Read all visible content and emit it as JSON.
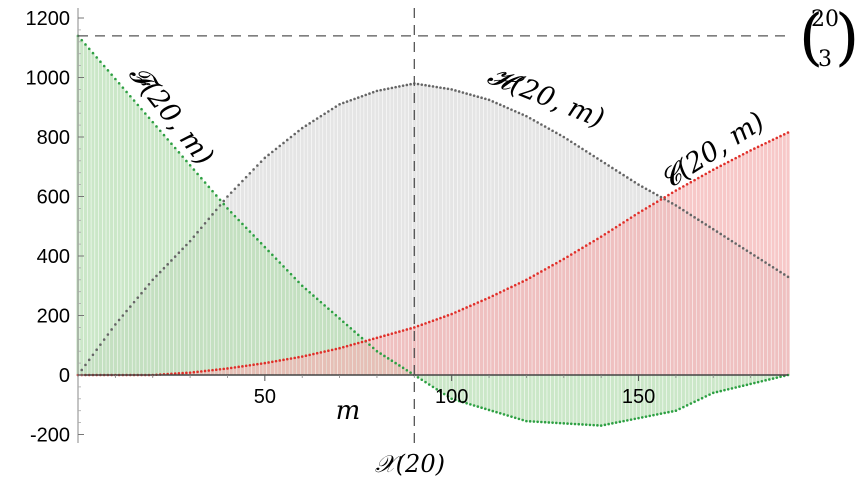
{
  "chart_data": {
    "type": "bar",
    "title": "",
    "xlabel": "m",
    "ylabel": "",
    "xlim": [
      0,
      190
    ],
    "ylim": [
      -220,
      1260
    ],
    "x_ticks": [
      50,
      100,
      150
    ],
    "x_tick_labels": [
      "50",
      "100",
      "150"
    ],
    "y_ticks": [
      -200,
      0,
      200,
      400,
      600,
      800,
      1000,
      1200
    ],
    "y_tick_labels": [
      "-200",
      "0",
      "200",
      "400",
      "600",
      "800",
      "1000",
      "1200"
    ],
    "grid": false,
    "legend": "none",
    "series": [
      {
        "name": "𝓕(20, m)",
        "color": "#2ea043",
        "fill": "#b8dfb4",
        "points": [
          [
            0,
            1140
          ],
          [
            20,
            850
          ],
          [
            40,
            560
          ],
          [
            60,
            300
          ],
          [
            80,
            80
          ],
          [
            90,
            0
          ],
          [
            100,
            -80
          ],
          [
            120,
            -155
          ],
          [
            140,
            -170
          ],
          [
            160,
            -120
          ],
          [
            170,
            -60
          ],
          [
            190,
            0
          ]
        ]
      },
      {
        "name": "𝓗(20, m)",
        "color": "#666666",
        "fill": "#dcdcdc",
        "points": [
          [
            0,
            0
          ],
          [
            10,
            170
          ],
          [
            20,
            320
          ],
          [
            30,
            450
          ],
          [
            40,
            600
          ],
          [
            50,
            730
          ],
          [
            60,
            830
          ],
          [
            70,
            910
          ],
          [
            80,
            955
          ],
          [
            90,
            980
          ],
          [
            100,
            960
          ],
          [
            110,
            925
          ],
          [
            120,
            870
          ],
          [
            130,
            800
          ],
          [
            140,
            720
          ],
          [
            150,
            640
          ],
          [
            160,
            570
          ],
          [
            170,
            490
          ],
          [
            180,
            410
          ],
          [
            190,
            330
          ]
        ]
      },
      {
        "name": "𝓒(20, m)",
        "color": "#e0302a",
        "fill": "#f4b3b3",
        "points": [
          [
            0,
            0
          ],
          [
            20,
            0
          ],
          [
            30,
            8
          ],
          [
            40,
            22
          ],
          [
            50,
            40
          ],
          [
            60,
            62
          ],
          [
            70,
            90
          ],
          [
            80,
            125
          ],
          [
            90,
            160
          ],
          [
            100,
            205
          ],
          [
            110,
            260
          ],
          [
            120,
            320
          ],
          [
            130,
            390
          ],
          [
            140,
            465
          ],
          [
            150,
            545
          ],
          [
            160,
            620
          ],
          [
            170,
            690
          ],
          [
            180,
            755
          ],
          [
            190,
            815
          ]
        ]
      }
    ],
    "reference_lines": [
      {
        "orientation": "horizontal",
        "value": 1140,
        "label_top": "20",
        "label_bottom": "3"
      },
      {
        "orientation": "vertical",
        "value": 90,
        "label": "𝒳(20)"
      }
    ]
  }
}
